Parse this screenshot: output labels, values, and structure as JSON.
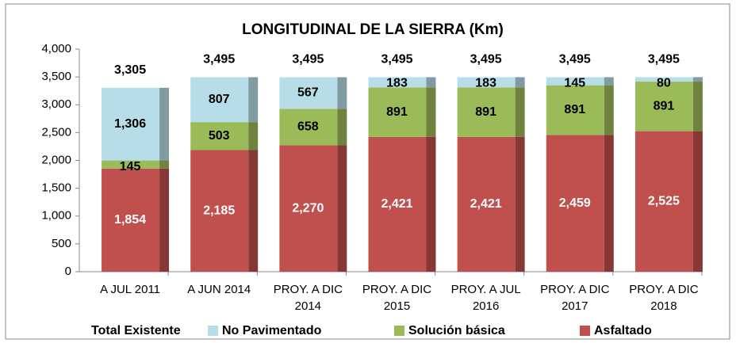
{
  "chart_data": {
    "type": "stacked_bar",
    "title": "LONGITUDINAL DE LA SIERRA (Km)",
    "categories": [
      [
        "A JUL 2011"
      ],
      [
        "A JUN 2014"
      ],
      [
        "PROY. A DIC",
        "2014"
      ],
      [
        "PROY. A DIC",
        "2015"
      ],
      [
        "PROY. A JUL",
        "2016"
      ],
      [
        "PROY. A DIC",
        "2017"
      ],
      [
        "PROY. A DIC",
        "2018"
      ]
    ],
    "series": [
      {
        "name": "Asfaltado",
        "color": "#c0504d",
        "label_color": "#ffffff",
        "values": [
          1854,
          2185,
          2270,
          2421,
          2421,
          2459,
          2525
        ],
        "value_labels": [
          "1,854",
          "2,185",
          "2,270",
          "2,421",
          "2,421",
          "2,459",
          "2,525"
        ]
      },
      {
        "name": "Solución básica",
        "color": "#9bbb59",
        "label_color": "#000000",
        "values": [
          145,
          503,
          658,
          891,
          891,
          891,
          891
        ]
      },
      {
        "name": "No Pavimentado",
        "color": "#b7dee8",
        "label_color": "#000000",
        "values": [
          1306,
          807,
          567,
          183,
          183,
          145,
          80
        ],
        "value_labels": [
          "1,306",
          "807",
          "567",
          "183",
          "183",
          "145",
          "80"
        ]
      }
    ],
    "total": {
      "name": "Total Existente",
      "values": [
        3305,
        3495,
        3495,
        3495,
        3495,
        3495,
        3495
      ],
      "value_labels": [
        "3,305",
        "3,495",
        "3,495",
        "3,495",
        "3,495",
        "3,495",
        "3,495"
      ]
    },
    "ylim": [
      0,
      4000
    ],
    "yticks": [
      0,
      500,
      {
        "value": 1000,
        "label": "1,000"
      },
      {
        "value": 1500,
        "label": "1,500"
      },
      {
        "value": 2000,
        "label": "2,000"
      },
      {
        "value": 2500,
        "label": "2,500"
      },
      {
        "value": 3000,
        "label": "3,000"
      },
      {
        "value": 3500,
        "label": "3,500"
      },
      {
        "value": 4000,
        "label": "4,000"
      }
    ],
    "legend": "bottom"
  }
}
